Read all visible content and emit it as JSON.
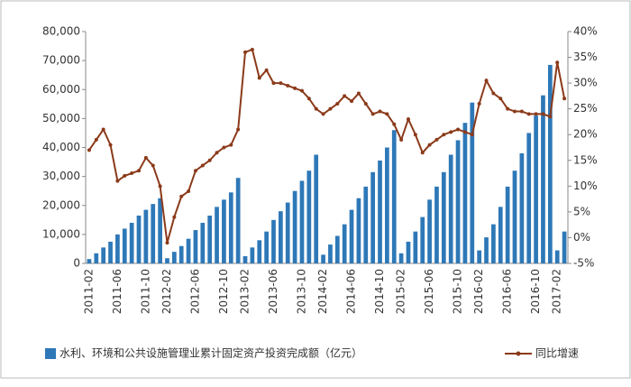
{
  "chart_data": {
    "type": "bar_line",
    "categories": [
      "2011-02",
      null,
      null,
      null,
      "2011-06",
      null,
      null,
      null,
      "2011-10",
      null,
      null,
      "2012-02",
      null,
      null,
      null,
      "2012-06",
      null,
      null,
      null,
      "2012-10",
      null,
      null,
      "2013-02",
      null,
      null,
      null,
      "2013-06",
      null,
      null,
      null,
      "2013-10",
      null,
      null,
      "2014-02",
      null,
      null,
      null,
      "2014-06",
      null,
      null,
      null,
      "2014-10",
      null,
      null,
      "2015-02",
      null,
      null,
      null,
      "2015-06",
      null,
      null,
      null,
      "2015-10",
      null,
      null,
      "2016-02",
      null,
      null,
      null,
      "2016-06",
      null,
      null,
      null,
      "2016-10",
      null,
      null,
      "2017-02",
      null
    ],
    "series": [
      {
        "name": "水利、环境和公共设施管理业累计固定资产投资完成额（亿元）",
        "color": "#2e78b7",
        "kind": "bar",
        "values": [
          1500,
          3500,
          5500,
          7500,
          10000,
          12000,
          14000,
          16500,
          18500,
          20500,
          22500,
          1800,
          4000,
          6000,
          8500,
          11500,
          14000,
          16500,
          19500,
          22000,
          24500,
          29500,
          2500,
          5500,
          8000,
          11000,
          15000,
          18000,
          21000,
          25000,
          28500,
          32000,
          37500,
          3000,
          6500,
          9500,
          13500,
          18500,
          22500,
          26500,
          31500,
          35500,
          40000,
          46000,
          3500,
          7500,
          11000,
          16000,
          22000,
          26500,
          31500,
          37500,
          42500,
          48500,
          55500,
          4500,
          9000,
          13500,
          19500,
          26500,
          32000,
          38000,
          45000,
          51000,
          58000,
          68500,
          4500,
          11000
        ]
      },
      {
        "name": "同比增速",
        "color": "#8b3a1a",
        "kind": "line",
        "axis": "y2",
        "values": [
          17,
          19,
          21,
          18,
          11,
          12,
          12.5,
          13,
          15.5,
          14,
          10,
          -1,
          4,
          8,
          9,
          13,
          14,
          15,
          16.5,
          17.5,
          18,
          21,
          36,
          36.5,
          31,
          32.5,
          30,
          30,
          29.5,
          29,
          28.5,
          27,
          25,
          24,
          25,
          26,
          27.5,
          26.5,
          28,
          26,
          24,
          24.5,
          24,
          22,
          19,
          23,
          20,
          16.5,
          18,
          19,
          20,
          20.5,
          21,
          20.5,
          20,
          26,
          30.5,
          28,
          27,
          25,
          24.5,
          24.5,
          24,
          24,
          24,
          23.5,
          34,
          27
        ]
      }
    ],
    "ylim": [
      0,
      80000
    ],
    "yticks": [
      0,
      {
        "value": 10000,
        "label": "10,000"
      },
      {
        "value": 20000,
        "label": "20,000"
      },
      {
        "value": 30000,
        "label": "30,000"
      },
      {
        "value": 40000,
        "label": "40,000"
      },
      {
        "value": 50000,
        "label": "50,000"
      },
      {
        "value": 60000,
        "label": "60,000"
      },
      {
        "value": 70000,
        "label": "70,000"
      },
      {
        "value": 80000,
        "label": "80,000"
      }
    ],
    "y2lim": [
      -5,
      40
    ],
    "y2ticks": [
      {
        "value": -5,
        "label": "-5%"
      },
      {
        "value": 0,
        "label": "0%"
      },
      {
        "value": 5,
        "label": "5%"
      },
      {
        "value": 10,
        "label": "10%"
      },
      {
        "value": 15,
        "label": "15%"
      },
      {
        "value": 20,
        "label": "20%"
      },
      {
        "value": 25,
        "label": "25%"
      },
      {
        "value": 30,
        "label": "30%"
      },
      {
        "value": 35,
        "label": "35%"
      },
      {
        "value": 40,
        "label": "40%"
      }
    ]
  }
}
